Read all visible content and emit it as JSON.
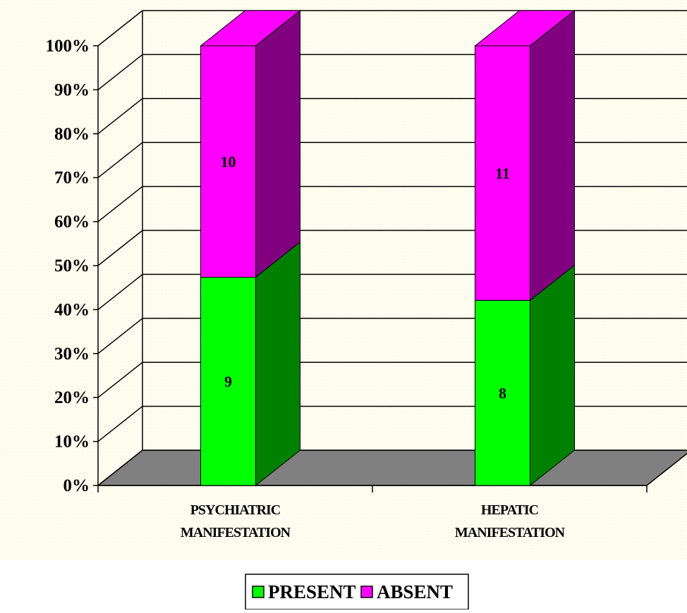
{
  "chart_data": {
    "type": "bar",
    "stacked": true,
    "percent_stacked": true,
    "three_d": true,
    "categories": [
      [
        "PSYCHIATRIC",
        "MANIFESTATION"
      ],
      [
        "HEPATIC",
        "MANIFESTATION"
      ]
    ],
    "series": [
      {
        "name": "PRESENT",
        "values": [
          9,
          8
        ],
        "color": "#00ff00",
        "side_color": "#008000"
      },
      {
        "name": "ABSENT",
        "values": [
          10,
          11
        ],
        "color": "#ff00ff",
        "side_color": "#800080"
      }
    ],
    "y_ticks": [
      "0%",
      "10%",
      "20%",
      "30%",
      "40%",
      "50%",
      "60%",
      "70%",
      "80%",
      "90%",
      "100%"
    ],
    "ylim": [
      0,
      100
    ],
    "grid": true,
    "legend": {
      "position": "bottom",
      "items": [
        "PRESENT",
        "ABSENT"
      ]
    },
    "colors": {
      "background": "#ffffe8",
      "floor": "#808080"
    }
  }
}
